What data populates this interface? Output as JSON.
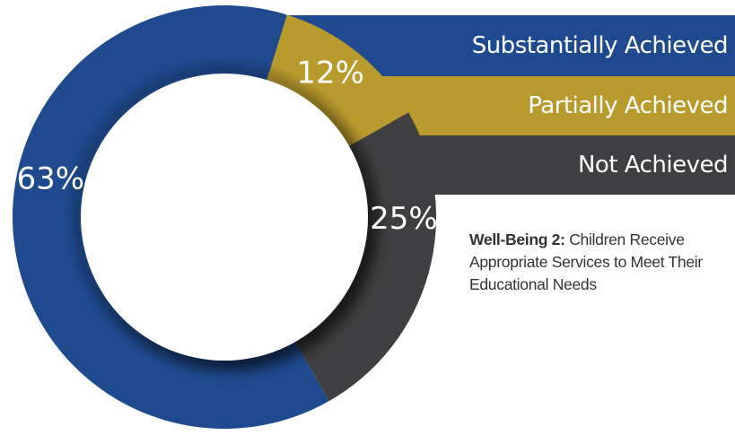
{
  "colors": {
    "substantially": "#1f4a8f",
    "partially": "#b99a2c",
    "not": "#3f3f41",
    "center": "#ffffff"
  },
  "legend": [
    {
      "label": "Substantially Achieved",
      "color": "#1f4a8f"
    },
    {
      "label": "Partially Achieved",
      "color": "#b99a2c"
    },
    {
      "label": "Not Achieved",
      "color": "#3f3f41"
    }
  ],
  "caption": {
    "title": "Well-Being 2:",
    "text": "Children Receive Appropriate Services to Meet Their Educational Needs"
  },
  "chart_data": {
    "type": "pie",
    "variant": "donut",
    "categories": [
      "Substantially Achieved",
      "Partially Achieved",
      "Not Achieved"
    ],
    "values": [
      63,
      12,
      25
    ],
    "labels": [
      "63%",
      "12%",
      "25%"
    ],
    "colors": [
      "#1f4a8f",
      "#b99a2c",
      "#3f3f41"
    ],
    "legend": "right"
  }
}
